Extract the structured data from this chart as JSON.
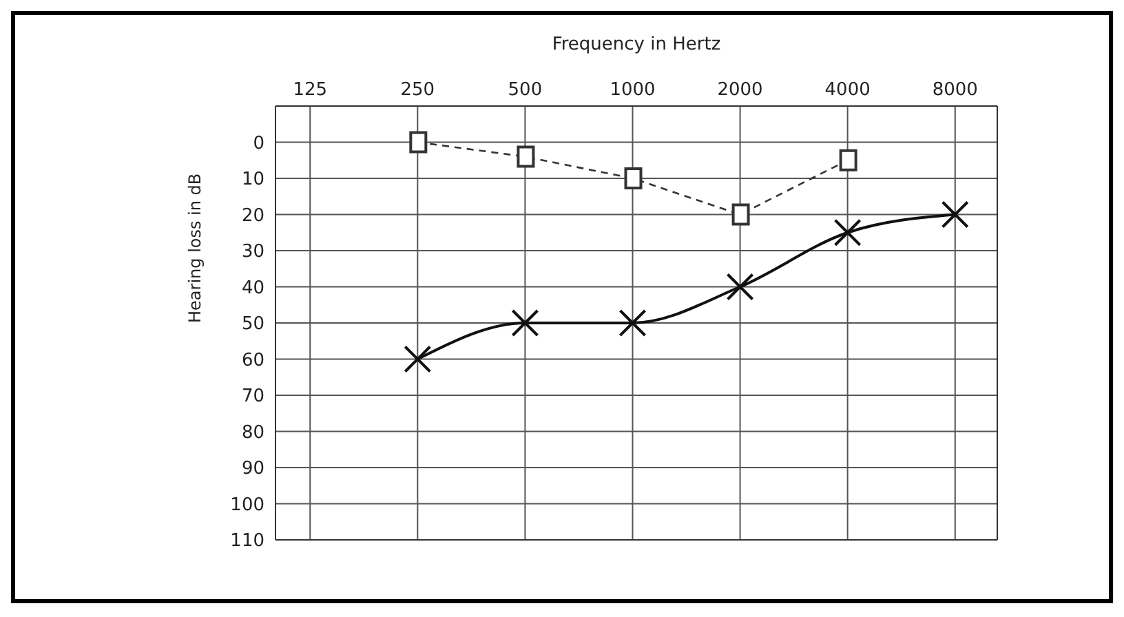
{
  "chart_data": {
    "type": "line",
    "xlabel": "Frequency in Hertz",
    "ylabel": "Hearing loss in dB",
    "x": [
      250,
      500,
      1000,
      2000,
      4000,
      8000
    ],
    "series": [
      {
        "values": [
          0,
          4,
          10,
          20,
          5,
          null
        ],
        "color": "#333333",
        "marker": "square",
        "line_style": "dashed"
      },
      {
        "values": [
          60,
          50,
          50,
          40,
          25,
          20
        ],
        "color": "#111111",
        "marker": "cross",
        "line_style": "solid"
      }
    ],
    "log": "x",
    "xlim": [
      100,
      10500
    ],
    "xticks": [
      125,
      250,
      500,
      1000,
      2000,
      4000,
      8000
    ],
    "ylim": [
      110,
      -10
    ],
    "yticks": [
      0,
      10,
      20,
      30,
      40,
      50,
      60,
      70,
      80,
      90,
      100,
      110
    ],
    "grid": true
  }
}
